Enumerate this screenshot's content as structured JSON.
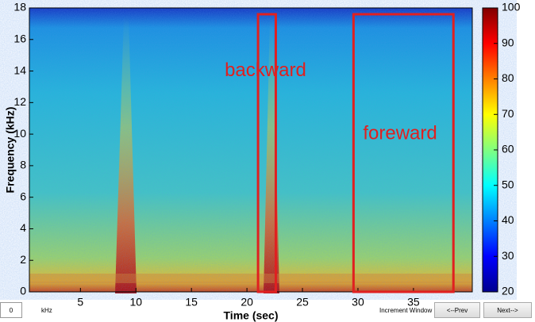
{
  "chart_data": {
    "type": "spectrogram",
    "colormap": "jet",
    "xlabel": "Time (sec)",
    "ylabel": "Frequency (kHz)",
    "xlim": [
      0.4,
      40.3
    ],
    "xticks": [
      5,
      10,
      15,
      20,
      25,
      30,
      35
    ],
    "ylim": [
      0,
      18
    ],
    "yticks": [
      0,
      2,
      4,
      6,
      8,
      10,
      12,
      14,
      16,
      18
    ],
    "clim": [
      20,
      100
    ],
    "cticks": [
      20,
      30,
      40,
      50,
      60,
      70,
      80,
      90,
      100
    ],
    "annotations": [
      {
        "text": "backward",
        "x": [
          21.0,
          22.6
        ],
        "y": [
          0,
          17.6
        ],
        "color": "#e02020"
      },
      {
        "text": "foreward",
        "x": [
          29.6,
          38.6
        ],
        "y": [
          0,
          17.6
        ],
        "color": "#e02020"
      }
    ]
  },
  "ui": {
    "start_value": "0",
    "unit": "kHz",
    "increment_label": "Increment Window",
    "prev_button": "<--Prev",
    "next_button": "Next-->"
  }
}
